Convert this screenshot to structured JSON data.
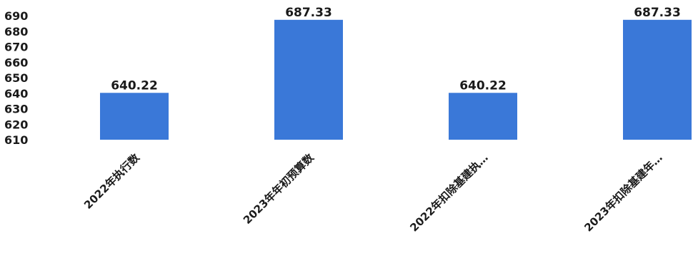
{
  "chart_data": {
    "type": "bar",
    "categories": [
      "2022年执行数",
      "2023年年初预算数",
      "2022年扣除基建执…",
      "2023年扣除基建年…"
    ],
    "values": [
      640.22,
      687.33,
      640.22,
      687.33
    ],
    "data_labels": [
      "640.22",
      "687.33",
      "640.22",
      "687.33"
    ],
    "title": "",
    "xlabel": "",
    "ylabel": "",
    "ylim": [
      610,
      690
    ],
    "yticks": [
      610,
      620,
      630,
      640,
      650,
      660,
      670,
      680,
      690
    ],
    "grid": false,
    "legend": "none",
    "bar_color": "#3a78d8"
  }
}
